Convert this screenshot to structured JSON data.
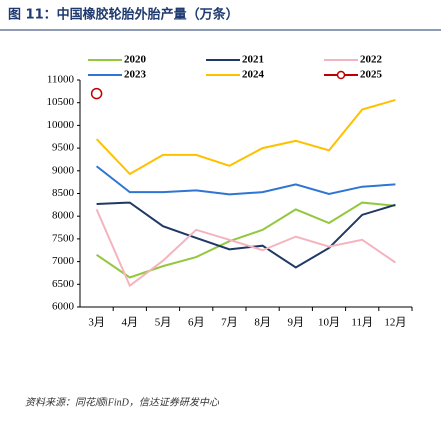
{
  "chart_data": {
    "type": "line",
    "title": "图 11：中国橡胶轮胎外胎产量（万条）",
    "source": "资料来源：同花顺iFinD，信达证券研发中心",
    "categories": [
      "3月",
      "4月",
      "5月",
      "6月",
      "7月",
      "8月",
      "9月",
      "10月",
      "11月",
      "12月"
    ],
    "series": [
      {
        "name": "2020",
        "color": "#92c83e",
        "values": [
          7150,
          6650,
          6900,
          7100,
          7450,
          7700,
          8150,
          7850,
          8300,
          8230
        ]
      },
      {
        "name": "2021",
        "color": "#1f3864",
        "values": [
          8270,
          8300,
          7780,
          7520,
          7270,
          7350,
          6870,
          7300,
          8030,
          8250
        ]
      },
      {
        "name": "2022",
        "color": "#f4b3c0",
        "values": [
          8150,
          6470,
          7020,
          7700,
          7480,
          7250,
          7550,
          7330,
          7480,
          6980
        ]
      },
      {
        "name": "2023",
        "color": "#2e75d4",
        "values": [
          9100,
          8530,
          8530,
          8570,
          8480,
          8530,
          8700,
          8490,
          8650,
          8700
        ]
      },
      {
        "name": "2024",
        "color": "#ffc000",
        "values": [
          9700,
          8930,
          9350,
          9350,
          9110,
          9500,
          9660,
          9450,
          10350,
          10560
        ]
      },
      {
        "name": "2025",
        "color": "#c00000",
        "marker": "circle",
        "values": [
          10700,
          null,
          null,
          null,
          null,
          null,
          null,
          null,
          null,
          null
        ]
      }
    ],
    "ylim": [
      6000,
      11000
    ],
    "yticks": [
      6000,
      6500,
      7000,
      7500,
      8000,
      8500,
      9000,
      9500,
      10000,
      10500,
      11000
    ]
  }
}
